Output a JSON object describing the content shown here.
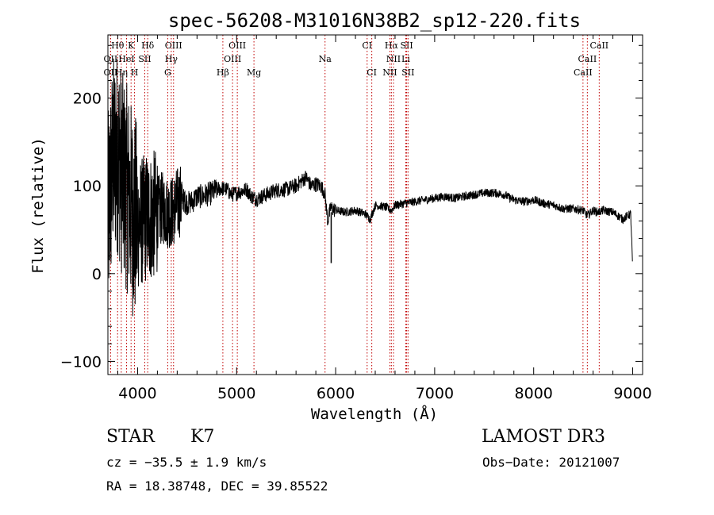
{
  "chart_data": {
    "type": "line",
    "title": "spec-56208-M31016N38B2_sp12-220.fits",
    "xlabel": "Wavelength (Å)",
    "ylabel": "Flux (relative)",
    "xlim": [
      3700,
      9100
    ],
    "ylim": [
      -115,
      272
    ],
    "x_ticks": [
      4000,
      5000,
      6000,
      7000,
      8000,
      9000
    ],
    "y_ticks": [
      -100,
      0,
      100,
      200
    ],
    "x_tick_labels": [
      "4000",
      "5000",
      "6000",
      "7000",
      "8000",
      "9000"
    ],
    "y_tick_labels": [
      "−100",
      "0",
      "100",
      "200"
    ],
    "series": [
      {
        "name": "spectrum",
        "x": [
          3700,
          3750,
          3800,
          3850,
          3900,
          3950,
          4000,
          4050,
          4100,
          4150,
          4200,
          4250,
          4300,
          4350,
          4400,
          4450,
          4500,
          4550,
          4600,
          4650,
          4700,
          4750,
          4800,
          4850,
          4900,
          4950,
          5000,
          5050,
          5100,
          5150,
          5200,
          5300,
          5400,
          5500,
          5600,
          5700,
          5750,
          5800,
          5850,
          5890,
          5920,
          5950,
          6000,
          6100,
          6200,
          6300,
          6350,
          6400,
          6500,
          6563,
          6600,
          6700,
          6800,
          6900,
          7000,
          7100,
          7200,
          7300,
          7400,
          7500,
          7600,
          7700,
          7800,
          7900,
          8000,
          8100,
          8200,
          8300,
          8400,
          8500,
          8540,
          8600,
          8650,
          8700,
          8800,
          8900,
          8950,
          8980,
          9000
        ],
        "y": [
          60,
          130,
          140,
          110,
          95,
          70,
          55,
          60,
          65,
          65,
          70,
          75,
          70,
          70,
          80,
          85,
          80,
          82,
          88,
          88,
          90,
          92,
          96,
          97,
          96,
          90,
          92,
          94,
          96,
          88,
          85,
          90,
          95,
          96,
          100,
          110,
          100,
          102,
          100,
          92,
          60,
          75,
          72,
          70,
          72,
          68,
          62,
          78,
          76,
          72,
          78,
          80,
          82,
          84,
          86,
          88,
          86,
          88,
          90,
          92,
          92,
          90,
          84,
          82,
          84,
          80,
          78,
          74,
          74,
          72,
          66,
          72,
          70,
          72,
          70,
          62,
          66,
          68,
          5
        ]
      }
    ],
    "line_markers": [
      {
        "label": "Hθ",
        "x": 3798,
        "row": 0
      },
      {
        "label": "K",
        "x": 3934,
        "row": 0
      },
      {
        "label": "Hδ",
        "x": 4102,
        "row": 0
      },
      {
        "label": "OIII",
        "x": 4363,
        "row": 0
      },
      {
        "label": "OIII",
        "x": 5007,
        "row": 0
      },
      {
        "label": "CI",
        "x": 6318,
        "row": 0
      },
      {
        "label": "Hα",
        "x": 6563,
        "row": 0
      },
      {
        "label": "SII",
        "x": 6717,
        "row": 0
      },
      {
        "label": "CaII",
        "x": 8662,
        "row": 0
      },
      {
        "label": "OII",
        "x": 3727,
        "row": 1
      },
      {
        "label": "HeI",
        "x": 3888,
        "row": 1
      },
      {
        "label": "SII",
        "x": 4072,
        "row": 1
      },
      {
        "label": "Hγ",
        "x": 4340,
        "row": 1
      },
      {
        "label": "OIII",
        "x": 4959,
        "row": 1
      },
      {
        "label": "Na",
        "x": 5893,
        "row": 1
      },
      {
        "label": "NII",
        "x": 6584,
        "row": 1
      },
      {
        "label": "Li",
        "x": 6708,
        "row": 1
      },
      {
        "label": "CaII",
        "x": 8542,
        "row": 1
      },
      {
        "label": "OII",
        "x": 3727,
        "row": 2
      },
      {
        "label": "Hη",
        "x": 3835,
        "row": 2
      },
      {
        "label": "H",
        "x": 3969,
        "row": 2
      },
      {
        "label": "G",
        "x": 4304,
        "row": 2
      },
      {
        "label": "Hβ",
        "x": 4861,
        "row": 2
      },
      {
        "label": "Mg",
        "x": 5175,
        "row": 2
      },
      {
        "label": "CI",
        "x": 6365,
        "row": 2
      },
      {
        "label": "NII",
        "x": 6548,
        "row": 2
      },
      {
        "label": "SII",
        "x": 6731,
        "row": 2
      },
      {
        "label": "CaII",
        "x": 8498,
        "row": 2
      }
    ]
  },
  "info": {
    "object_class": "STAR",
    "subclass": "K7",
    "survey": "LAMOST DR3",
    "redshift": "cz = −35.5 ± 1.9 km/s",
    "obs_date": "Obs−Date: 20121007",
    "coords": "RA =  18.38748, DEC =  39.85522"
  },
  "colors": {
    "spectrum": "#000000",
    "marker_line": "#c00000",
    "axis": "#000000",
    "background": "#ffffff"
  }
}
